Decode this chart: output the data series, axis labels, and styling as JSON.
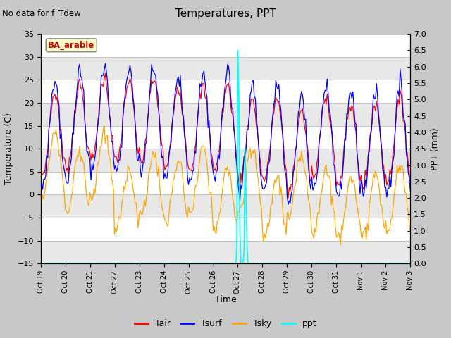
{
  "title": "Temperatures, PPT",
  "suptitle": "No data for f_Tdew",
  "box_label": "BA_arable",
  "xlabel": "Time",
  "ylabel_left": "Temperature (C)",
  "ylabel_right": "PPT (mm)",
  "ylim_left": [
    -15,
    35
  ],
  "ylim_right": [
    0.0,
    7.0
  ],
  "yticks_left": [
    -15,
    -10,
    -5,
    0,
    5,
    10,
    15,
    20,
    25,
    30,
    35
  ],
  "yticks_right": [
    0.0,
    0.5,
    1.0,
    1.5,
    2.0,
    2.5,
    3.0,
    3.5,
    4.0,
    4.5,
    5.0,
    5.5,
    6.0,
    6.5,
    7.0
  ],
  "xtick_labels": [
    "Oct 19",
    "Oct 20",
    "Oct 21",
    "Oct 22",
    "Oct 23",
    "Oct 24",
    "Oct 25",
    "Oct 26",
    "Oct 27",
    "Oct 28",
    "Oct 29",
    "Oct 30",
    "Oct 31",
    "Nov 1",
    "Nov 2",
    "Nov 3"
  ],
  "colors": {
    "Tair": "#ff0000",
    "Tsurf": "#0000ff",
    "Tsky": "#ffa500",
    "ppt": "#00ffff"
  },
  "fig_bg": "#c8c8c8",
  "plot_bg_light": "#e8e8e8",
  "plot_bg_dark": "#d8d8d8",
  "n_days": 16,
  "ppt_baseline": -15.0,
  "ppt_scale": 3.14
}
